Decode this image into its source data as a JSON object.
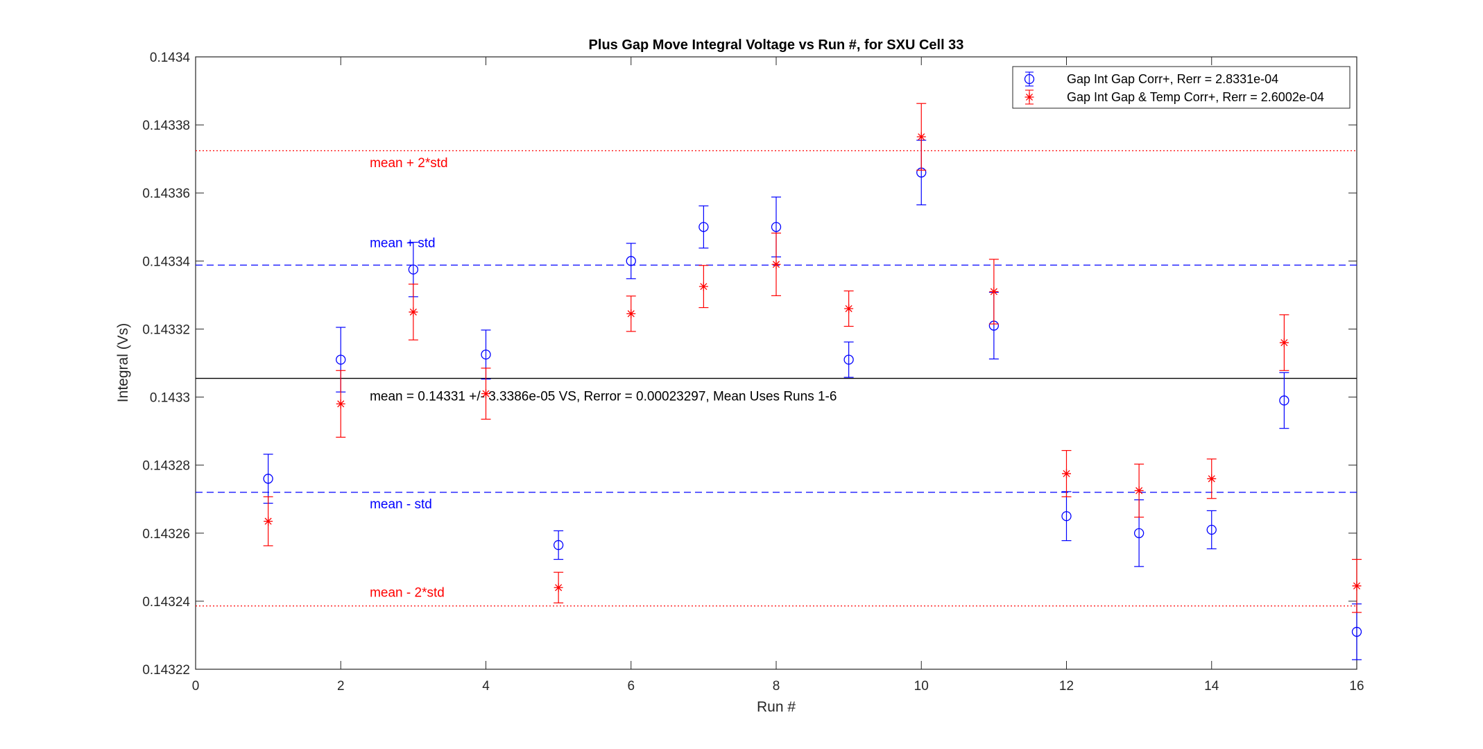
{
  "chart_data": {
    "type": "scatter",
    "title": "Plus Gap Move Integral Voltage vs Run #, for SXU Cell 33",
    "xlabel": "Run #",
    "ylabel": "Integral (Vs)",
    "xlim": [
      0,
      16
    ],
    "ylim": [
      0.14322,
      0.1434
    ],
    "x_ticks": [
      0,
      2,
      4,
      6,
      8,
      10,
      12,
      14,
      16
    ],
    "y_ticks": [
      0.14322,
      0.14324,
      0.14326,
      0.14328,
      0.1433,
      0.14332,
      0.14334,
      0.14336,
      0.14338,
      0.1434
    ],
    "x_tick_labels": [
      "0",
      "2",
      "4",
      "6",
      "8",
      "10",
      "12",
      "14",
      "16"
    ],
    "y_tick_labels": [
      "0.14322",
      "0.14324",
      "0.14326",
      "0.14328",
      "0.1433",
      "0.14332",
      "0.14334",
      "0.14336",
      "0.14338",
      "0.1434"
    ],
    "grid": false,
    "legend_position": "top-right",
    "series": [
      {
        "name": "Gap Int Gap Corr+, Rerr = 2.8331e-04",
        "marker": "circle",
        "color": "#0000ff",
        "x": [
          1,
          2,
          3,
          4,
          5,
          6,
          7,
          8,
          9,
          10,
          11,
          12,
          13,
          14,
          15,
          16
        ],
        "y": [
          0.143276,
          0.143311,
          0.1433375,
          0.1433125,
          0.1432565,
          0.14334,
          0.14335,
          0.14335,
          0.143311,
          0.143366,
          0.143321,
          0.143265,
          0.14326,
          0.143261,
          0.143299,
          0.143231
        ],
        "err": [
          7.2e-06,
          9.5e-06,
          8e-06,
          7.2e-06,
          4.2e-06,
          5.2e-06,
          6.2e-06,
          8.8e-06,
          5.2e-06,
          9.5e-06,
          9.8e-06,
          7.2e-06,
          9.8e-06,
          5.6e-06,
          8.2e-06,
          8.2e-06
        ]
      },
      {
        "name": "Gap Int Gap & Temp  Corr+, Rerr = 2.6002e-04",
        "marker": "asterisk",
        "color": "#ff0000",
        "x": [
          1,
          2,
          3,
          4,
          5,
          6,
          7,
          8,
          9,
          10,
          11,
          12,
          13,
          14,
          15,
          16
        ],
        "y": [
          0.1432635,
          0.143298,
          0.143325,
          0.143301,
          0.143244,
          0.1433245,
          0.1433325,
          0.143339,
          0.143326,
          0.1433765,
          0.143331,
          0.1432775,
          0.1432725,
          0.143276,
          0.143316,
          0.1432445
        ],
        "err": [
          7.2e-06,
          9.8e-06,
          8.2e-06,
          7.5e-06,
          4.5e-06,
          5.2e-06,
          6.2e-06,
          9.2e-06,
          5.2e-06,
          9.8e-06,
          9.5e-06,
          6.8e-06,
          7.8e-06,
          5.8e-06,
          8.2e-06,
          7.8e-06
        ]
      }
    ],
    "reference_lines": [
      {
        "y": 0.1433724,
        "style": "dotted",
        "color": "#ff0000",
        "label": "mean + 2*std",
        "label_x": 2.4,
        "label_y": 0.1433676
      },
      {
        "y": 0.1433388,
        "style": "dashed",
        "color": "#0000ff",
        "label": "mean + std",
        "label_x": 2.4,
        "label_y": 0.143344
      },
      {
        "y": 0.1433055,
        "style": "solid",
        "color": "#000000",
        "label": "mean = 0.14331 +/- 3.3386e-05 VS, Rerror = 0.00023297, Mean Uses Runs 1-6",
        "label_x": 2.4,
        "label_y": 0.143299
      },
      {
        "y": 0.143272,
        "style": "dashed",
        "color": "#0000ff",
        "label": "mean - std",
        "label_x": 2.4,
        "label_y": 0.1432673
      },
      {
        "y": 0.1432386,
        "style": "dotted",
        "color": "#ff0000",
        "label": "mean - 2*std",
        "label_x": 2.4,
        "label_y": 0.1432413
      }
    ]
  }
}
